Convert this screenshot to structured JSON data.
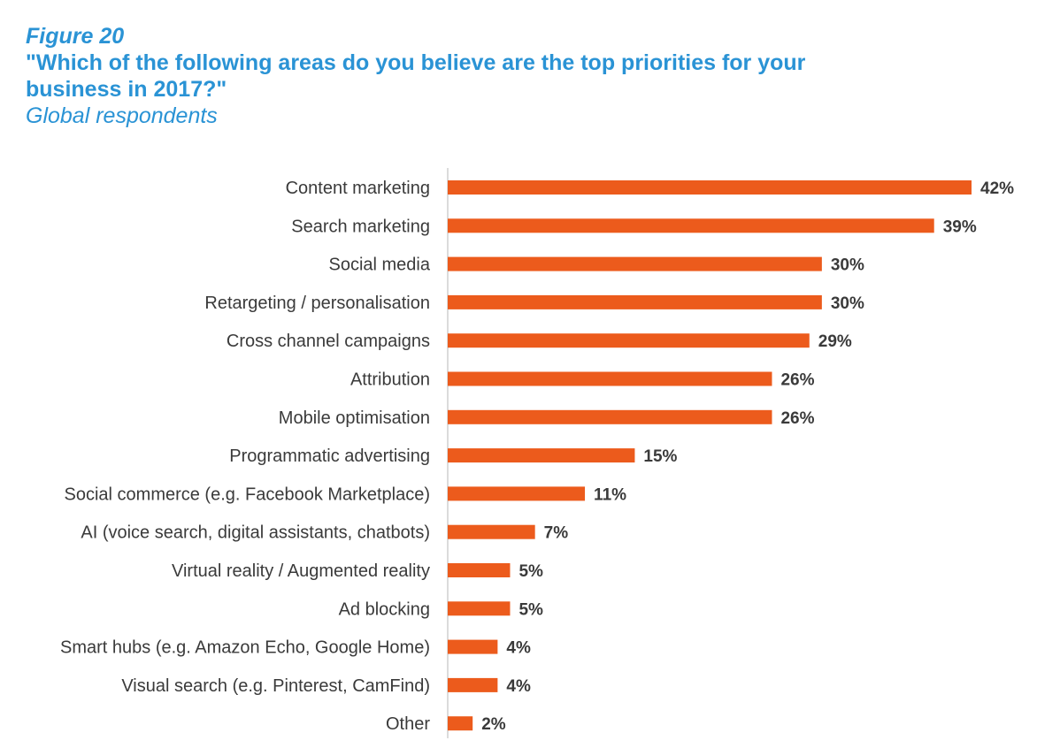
{
  "header": {
    "figure_label": "Figure 20",
    "title": "\"Which of the following areas do you believe are the top priorities for your business in 2017?\"",
    "subtitle": "Global respondents"
  },
  "colors": {
    "accent": "#2a93d5",
    "bar": "#ec5b1c",
    "text": "#3a3a3a",
    "axis": "#cfcfcf"
  },
  "chart_data": {
    "type": "bar",
    "orientation": "horizontal",
    "title": "\"Which of the following areas do you believe are the top priorities for your business in 2017?\"",
    "subtitle": "Global respondents",
    "categories": [
      "Content marketing",
      "Search marketing",
      "Social media",
      "Retargeting / personalisation",
      "Cross channel campaigns",
      "Attribution",
      "Mobile optimisation",
      "Programmatic advertising",
      "Social commerce (e.g. Facebook Marketplace)",
      "AI (voice search, digital assistants, chatbots)",
      "Virtual reality / Augmented reality",
      "Ad blocking",
      "Smart hubs (e.g. Amazon Echo, Google Home)",
      "Visual search (e.g. Pinterest, CamFind)",
      "Other"
    ],
    "values": [
      42,
      39,
      30,
      30,
      29,
      26,
      26,
      15,
      11,
      7,
      5,
      5,
      4,
      4,
      2
    ],
    "value_labels": [
      "42%",
      "39%",
      "30%",
      "30%",
      "29%",
      "26%",
      "26%",
      "15%",
      "11%",
      "7%",
      "5%",
      "5%",
      "4%",
      "4%",
      "2%"
    ],
    "unit": "%",
    "xlim": [
      0,
      42
    ],
    "grid": false,
    "legend": "none"
  }
}
